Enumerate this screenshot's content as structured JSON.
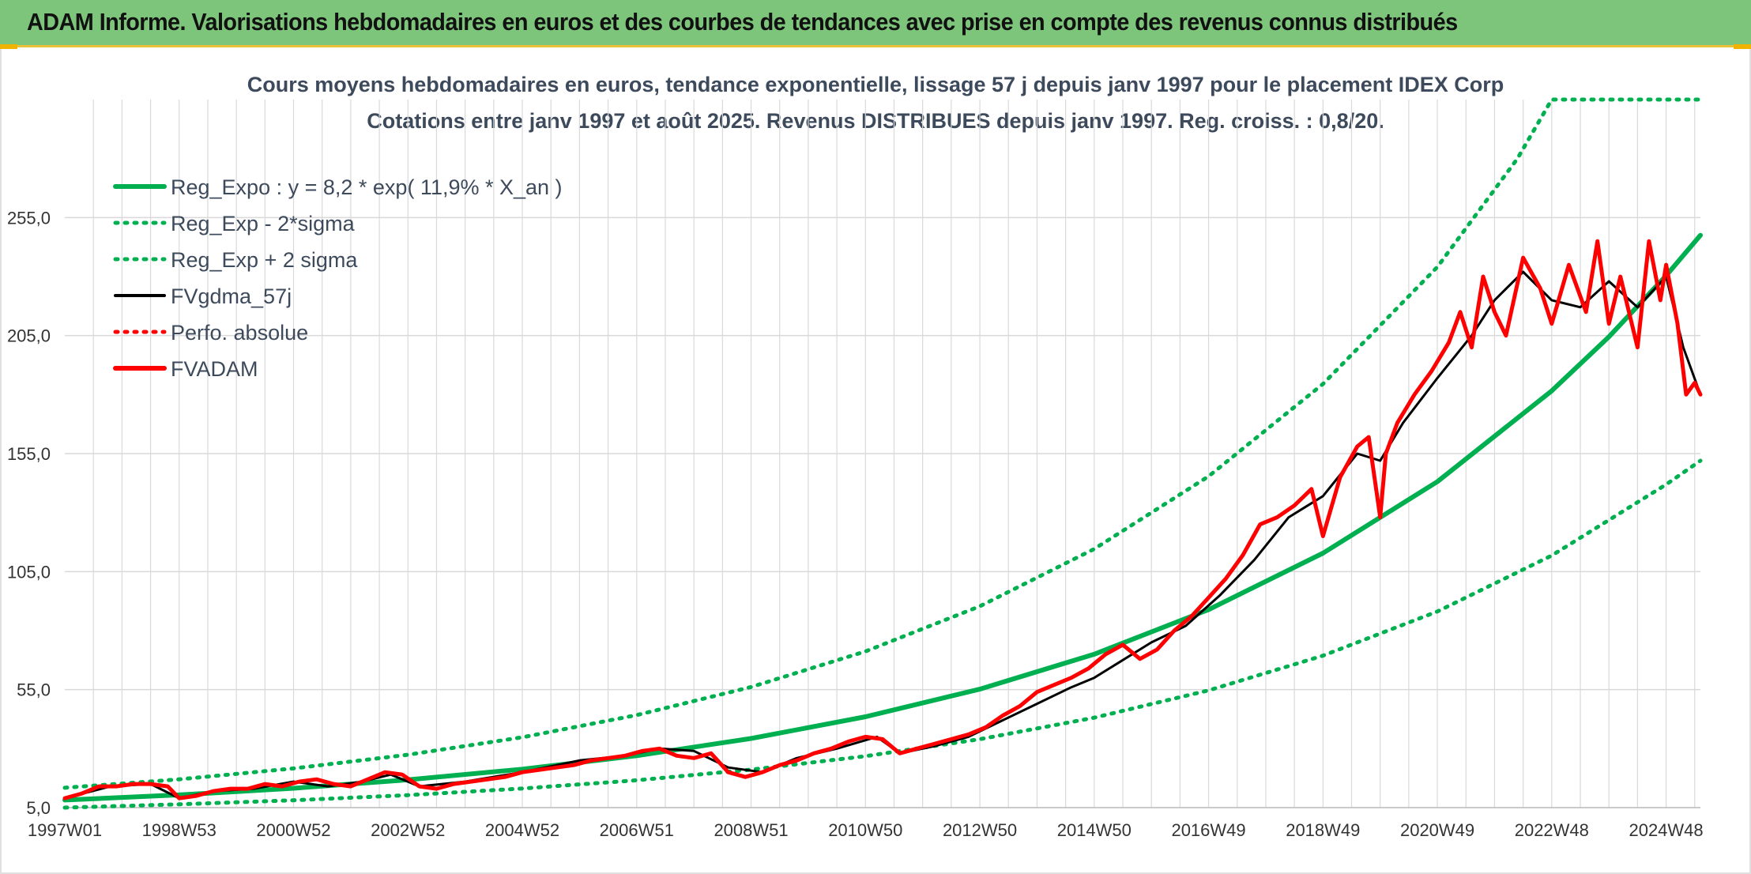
{
  "banner": {
    "title": "ADAM Informe. Valorisations hebdomadaires en euros et des courbes de tendances avec prise en compte des revenus connus distribués"
  },
  "colors": {
    "banner_bg": "#7dc57a",
    "trend_green": "#00b050",
    "smooth_black": "#000000",
    "price_red": "#ff0000",
    "grid": "#d9d9d9"
  },
  "chart_data": {
    "type": "line",
    "title": "Cours moyens hebdomadaires en euros, tendance exponentielle, lissage 57 j depuis janv 1997 pour le placement IDEX Corp",
    "subtitle": "Cotations entre janv 1997 et août 2025. Revenus DISTRIBUES depuis janv 1997. Reg. croiss. : 0,8/20.",
    "xlabel": "",
    "ylabel": "",
    "x_range": [
      1997.0,
      2025.6
    ],
    "ylim": [
      5,
      305
    ],
    "y_ticks": [
      "5,0",
      "55,0",
      "105,0",
      "155,0",
      "205,0",
      "255,0"
    ],
    "y_tick_values": [
      5,
      55,
      105,
      155,
      205,
      255
    ],
    "x_ticks": [
      "1997W01",
      "1998W53",
      "2000W52",
      "2002W52",
      "2004W52",
      "2006W51",
      "2008W51",
      "2010W50",
      "2012W50",
      "2014W50",
      "2016W49",
      "2018W49",
      "2020W49",
      "2022W48",
      "2024W48"
    ],
    "x_tick_years": [
      1997.0,
      1999.0,
      2001.0,
      2003.0,
      2005.0,
      2007.0,
      2009.0,
      2011.0,
      2013.0,
      2015.0,
      2017.0,
      2019.0,
      2021.0,
      2023.0,
      2025.0
    ],
    "grid": true,
    "legend_position": "top-left",
    "legend": [
      {
        "label": "Reg_Expo : y = 8,2 * exp( 11,9% *  X_an )",
        "style": "solid-thick",
        "color": "#00b050"
      },
      {
        "label": "Reg_Exp - 2*sigma",
        "style": "dotted",
        "color": "#00b050"
      },
      {
        "label": "Reg_Exp + 2 sigma",
        "style": "dotted",
        "color": "#00b050"
      },
      {
        "label": "FVgdma_57j",
        "style": "solid",
        "color": "#000000"
      },
      {
        "label": "Perfo. absolue",
        "style": "dotted",
        "color": "#ff0000"
      },
      {
        "label": "FVADAM",
        "style": "solid-thick",
        "color": "#ff0000"
      }
    ],
    "series": [
      {
        "name": "Reg_Expo : y = 8,2 * exp( 11,9% *  X_an )",
        "x": [
          1997.0,
          1999.0,
          2001.0,
          2003.0,
          2005.0,
          2007.0,
          2009.0,
          2011.0,
          2013.0,
          2015.0,
          2017.0,
          2019.0,
          2021.0,
          2023.0,
          2024.0,
          2025.0,
          2025.6
        ],
        "values": [
          8.2,
          10.4,
          13.2,
          16.8,
          21.3,
          27.0,
          34.3,
          43.5,
          55.2,
          70.0,
          88.9,
          112.8,
          143.1,
          181.6,
          204.5,
          230.4,
          247.5
        ]
      },
      {
        "name": "Reg_Exp - 2*sigma",
        "x": [
          1997.0,
          1999.0,
          2001.0,
          2003.0,
          2005.0,
          2007.0,
          2009.0,
          2011.0,
          2013.0,
          2015.0,
          2017.0,
          2019.0,
          2021.0,
          2023.0,
          2025.0,
          2025.6
        ],
        "values": [
          5.0,
          6.4,
          8.1,
          10.3,
          13.1,
          16.6,
          21.1,
          26.8,
          34.0,
          43.1,
          54.7,
          69.4,
          88.1,
          111.8,
          141.9,
          152.0
        ]
      },
      {
        "name": "Reg_Exp + 2 sigma",
        "x": [
          1997.0,
          1999.0,
          2001.0,
          2003.0,
          2005.0,
          2007.0,
          2009.0,
          2011.0,
          2013.0,
          2015.0,
          2017.0,
          2019.0,
          2021.0,
          2022.4,
          2023.0,
          2025.6
        ],
        "values": [
          13.4,
          17.0,
          21.6,
          27.4,
          34.8,
          44.2,
          56.1,
          71.2,
          90.3,
          114.6,
          145.4,
          184.5,
          234.1,
          280.0,
          305.0,
          305.0
        ]
      },
      {
        "name": "FVgdma_57j",
        "x": [
          1997.0,
          1997.8,
          1998.5,
          1999.0,
          1999.6,
          2000.3,
          2001.0,
          2001.6,
          2002.2,
          2002.7,
          2003.2,
          2004.0,
          2005.0,
          2006.0,
          2006.8,
          2007.4,
          2008.0,
          2008.6,
          2009.2,
          2009.8,
          2010.5,
          2011.2,
          2011.6,
          2012.2,
          2012.8,
          2013.4,
          2014.0,
          2014.6,
          2015.0,
          2015.4,
          2016.0,
          2016.6,
          2017.2,
          2017.8,
          2018.4,
          2019.0,
          2019.6,
          2020.0,
          2020.4,
          2021.0,
          2021.6,
          2022.0,
          2022.5,
          2023.0,
          2023.5,
          2024.0,
          2024.5,
          2025.0,
          2025.3,
          2025.6
        ],
        "values": [
          9,
          14,
          15,
          9,
          12,
          13,
          16,
          14,
          16,
          19,
          14,
          16,
          20,
          25,
          27,
          30,
          29,
          22,
          20,
          26,
          30,
          35,
          28,
          31,
          35,
          42,
          49,
          56,
          60,
          66,
          75,
          82,
          95,
          110,
          128,
          137,
          155,
          152,
          168,
          187,
          205,
          220,
          232,
          220,
          217,
          228,
          217,
          230,
          200,
          180
        ]
      },
      {
        "name": "FVADAM",
        "x": [
          1997.0,
          1997.3,
          1997.6,
          1997.9,
          1998.2,
          1998.5,
          1998.8,
          1999.0,
          1999.3,
          1999.6,
          1999.9,
          2000.2,
          2000.5,
          2000.8,
          2001.1,
          2001.4,
          2001.7,
          2002.0,
          2002.3,
          2002.6,
          2002.9,
          2003.2,
          2003.5,
          2003.8,
          2004.1,
          2004.4,
          2004.7,
          2005.0,
          2005.3,
          2005.6,
          2005.9,
          2006.2,
          2006.5,
          2006.8,
          2007.1,
          2007.4,
          2007.7,
          2008.0,
          2008.3,
          2008.6,
          2008.9,
          2009.2,
          2009.5,
          2009.8,
          2010.1,
          2010.4,
          2010.7,
          2011.0,
          2011.3,
          2011.6,
          2011.9,
          2012.2,
          2012.5,
          2012.8,
          2013.1,
          2013.4,
          2013.7,
          2014.0,
          2014.3,
          2014.6,
          2014.9,
          2015.2,
          2015.5,
          2015.8,
          2016.1,
          2016.4,
          2016.7,
          2017.0,
          2017.3,
          2017.6,
          2017.9,
          2018.2,
          2018.5,
          2018.8,
          2019.0,
          2019.3,
          2019.6,
          2019.8,
          2020.0,
          2020.1,
          2020.3,
          2020.6,
          2020.9,
          2021.2,
          2021.4,
          2021.6,
          2021.8,
          2022.0,
          2022.2,
          2022.5,
          2022.8,
          2023.0,
          2023.3,
          2023.6,
          2023.8,
          2024.0,
          2024.2,
          2024.5,
          2024.7,
          2024.9,
          2025.0,
          2025.2,
          2025.35,
          2025.5,
          2025.6
        ],
        "values": [
          9,
          11,
          14,
          14,
          15,
          15,
          14,
          9,
          10,
          12,
          13,
          13,
          15,
          14,
          16,
          17,
          15,
          14,
          17,
          20,
          19,
          14,
          13,
          15,
          16,
          17,
          18,
          20,
          21,
          22,
          23,
          25,
          26,
          27,
          29,
          30,
          27,
          26,
          28,
          20,
          18,
          20,
          23,
          25,
          28,
          30,
          33,
          35,
          34,
          28,
          30,
          32,
          34,
          36,
          39,
          44,
          48,
          54,
          57,
          60,
          64,
          70,
          74,
          68,
          72,
          80,
          86,
          94,
          102,
          112,
          125,
          128,
          133,
          140,
          120,
          145,
          158,
          162,
          128,
          155,
          168,
          180,
          190,
          202,
          215,
          200,
          230,
          215,
          205,
          238,
          225,
          210,
          235,
          215,
          245,
          210,
          230,
          200,
          245,
          220,
          235,
          210,
          180,
          185,
          180
        ]
      }
    ]
  }
}
